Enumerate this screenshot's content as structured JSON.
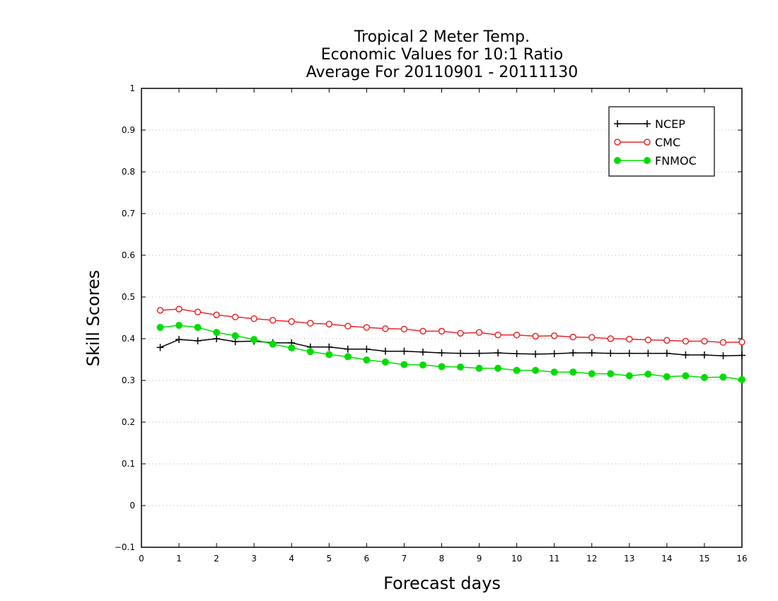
{
  "chart_data": {
    "type": "line",
    "title": [
      "Tropical 2 Meter Temp.",
      "Economic Values for 10:1 Ratio",
      "Average For 20110901 - 20111130"
    ],
    "xlabel": "Forecast days",
    "ylabel": "Skill Scores",
    "xlim": [
      0,
      16
    ],
    "ylim": [
      -0.1,
      1
    ],
    "xticks": [
      "0",
      "1",
      "2",
      "3",
      "4",
      "5",
      "6",
      "7",
      "8",
      "9",
      "10",
      "11",
      "12",
      "13",
      "14",
      "15",
      "16"
    ],
    "yticks": [
      "−0.1",
      "0",
      "0.1",
      "0.2",
      "0.3",
      "0.4",
      "0.5",
      "0.6",
      "0.7",
      "0.8",
      "0.9",
      "1"
    ],
    "grid": "horizontal dotted",
    "legend_position": "top-right",
    "x": [
      0.5,
      1,
      1.5,
      2,
      2.5,
      3,
      3.5,
      4,
      4.5,
      5,
      5.5,
      6,
      6.5,
      7,
      7.5,
      8,
      8.5,
      9,
      9.5,
      10,
      10.5,
      11,
      11.5,
      12,
      12.5,
      13,
      13.5,
      14,
      14.5,
      15,
      15.5,
      16
    ],
    "series": [
      {
        "name": "NCEP",
        "color": "#000000",
        "marker": "plus",
        "values": [
          0.379,
          0.398,
          0.395,
          0.4,
          0.393,
          0.394,
          0.39,
          0.39,
          0.38,
          0.38,
          0.375,
          0.375,
          0.37,
          0.37,
          0.368,
          0.366,
          0.365,
          0.365,
          0.366,
          0.364,
          0.363,
          0.364,
          0.366,
          0.366,
          0.365,
          0.365,
          0.365,
          0.365,
          0.361,
          0.361,
          0.359,
          0.36
        ]
      },
      {
        "name": "CMC",
        "color": "#e8282b",
        "marker": "open-circle",
        "values": [
          0.468,
          0.471,
          0.464,
          0.457,
          0.452,
          0.448,
          0.444,
          0.441,
          0.437,
          0.435,
          0.43,
          0.427,
          0.424,
          0.423,
          0.418,
          0.418,
          0.413,
          0.415,
          0.409,
          0.409,
          0.406,
          0.407,
          0.404,
          0.403,
          0.4,
          0.399,
          0.397,
          0.396,
          0.394,
          0.394,
          0.391,
          0.392
        ]
      },
      {
        "name": "FNMOC",
        "color": "#00dd00",
        "marker": "filled-circle",
        "values": [
          0.427,
          0.432,
          0.427,
          0.415,
          0.407,
          0.398,
          0.387,
          0.378,
          0.369,
          0.362,
          0.357,
          0.349,
          0.344,
          0.338,
          0.337,
          0.333,
          0.332,
          0.329,
          0.329,
          0.324,
          0.324,
          0.32,
          0.32,
          0.316,
          0.316,
          0.311,
          0.315,
          0.309,
          0.311,
          0.307,
          0.308,
          0.302
        ]
      }
    ]
  }
}
